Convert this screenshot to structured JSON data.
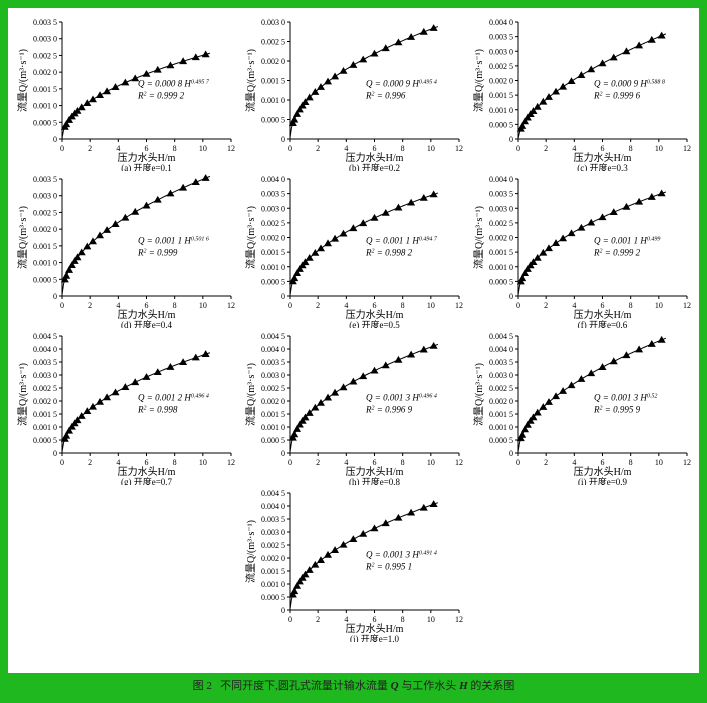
{
  "figure": {
    "number": "图 2",
    "title_prefix": "不同开度下,圆孔式流量计输水流量 ",
    "var_q": "Q",
    "title_mid": " 与工作水头 ",
    "var_h": "H",
    "title_suffix": " 的关系图"
  },
  "axes": {
    "xlabel": "压力水头H/m",
    "ylabel": "流量Q/(m³·s⁻¹)",
    "xlim": [
      0,
      12
    ],
    "xticks": [
      0,
      2,
      4,
      6,
      8,
      10,
      12
    ],
    "marker": "triangle",
    "marker_size": 4,
    "marker_color": "#000000",
    "line_color": "#000000",
    "line_width": 1,
    "background_color": "#ffffff",
    "axis_color": "#000000",
    "font_size_tick": 8,
    "font_size_label": 10
  },
  "panels": [
    {
      "id": "a",
      "sub": "(a) 开度e=0.1",
      "coef": 0.0008,
      "exp": 0.4957,
      "exp_str": "0.495 7",
      "r2": "0.999 2",
      "ylim": [
        0,
        0.0035
      ],
      "yticks": [
        0,
        0.0005,
        0.001,
        0.0015,
        0.002,
        0.0025,
        0.003,
        0.0035
      ],
      "ytick_labels": [
        "0",
        "0.000 5",
        "0.001 0",
        "0.001 5",
        "0.002 0",
        "0.002 5",
        "0.003 0",
        "0.003 5"
      ],
      "eq": "Q = 0.000 8 H",
      "data_x": [
        0.2,
        0.3,
        0.5,
        0.7,
        0.9,
        1.1,
        1.4,
        1.8,
        2.2,
        2.7,
        3.2,
        3.8,
        4.5,
        5.2,
        6.0,
        6.8,
        7.7,
        8.6,
        9.5,
        10.2
      ]
    },
    {
      "id": "b",
      "sub": "(b) 开度e=0.2",
      "coef": 0.0009,
      "exp": 0.4954,
      "exp_str": "0.495 4",
      "r2": "0.996",
      "ylim": [
        0,
        0.003
      ],
      "yticks": [
        0,
        0.0005,
        0.001,
        0.0015,
        0.002,
        0.0025,
        0.003
      ],
      "ytick_labels": [
        "0",
        "0.000 5",
        "0.001 0",
        "0.001 5",
        "0.002 0",
        "0.002 5",
        "0.003 0"
      ],
      "eq": "Q = 0.000 9 H",
      "data_x": [
        0.2,
        0.3,
        0.5,
        0.7,
        0.9,
        1.1,
        1.4,
        1.8,
        2.2,
        2.7,
        3.2,
        3.8,
        4.5,
        5.2,
        6.0,
        6.8,
        7.7,
        8.6,
        9.5,
        10.2
      ]
    },
    {
      "id": "c",
      "sub": "(c) 开度e=0.3",
      "coef": 0.0009,
      "exp": 0.5888,
      "exp_str": "0.588 8",
      "r2": "0.999 6",
      "ylim": [
        0,
        0.004
      ],
      "yticks": [
        0,
        0.0005,
        0.001,
        0.0015,
        0.002,
        0.0025,
        0.003,
        0.0035,
        0.004
      ],
      "ytick_labels": [
        "0",
        "0.000 5",
        "0.001 0",
        "0.001 5",
        "0.002 0",
        "0.002 5",
        "0.003 0",
        "0.003 5",
        "0.004 0"
      ],
      "eq": "Q = 0.000 9 H",
      "data_x": [
        0.2,
        0.3,
        0.5,
        0.7,
        0.9,
        1.1,
        1.4,
        1.8,
        2.2,
        2.7,
        3.2,
        3.8,
        4.5,
        5.2,
        6.0,
        6.8,
        7.7,
        8.6,
        9.5,
        10.2
      ]
    },
    {
      "id": "d",
      "sub": "(d) 开度e=0.4",
      "coef": 0.0011,
      "exp": 0.5016,
      "exp_str": "0.501 6",
      "r2": "0.999",
      "ylim": [
        0,
        0.0035
      ],
      "yticks": [
        0,
        0.0005,
        0.001,
        0.0015,
        0.002,
        0.0025,
        0.003,
        0.0035
      ],
      "ytick_labels": [
        "0",
        "0.000 5",
        "0.001 0",
        "0.001 5",
        "0.002 0",
        "0.002 5",
        "0.003 0",
        "0.003 5"
      ],
      "eq": "Q = 0.001 1 H",
      "data_x": [
        0.2,
        0.3,
        0.5,
        0.7,
        0.9,
        1.1,
        1.4,
        1.8,
        2.2,
        2.7,
        3.2,
        3.8,
        4.5,
        5.2,
        6.0,
        6.8,
        7.7,
        8.6,
        9.5,
        10.2
      ]
    },
    {
      "id": "e",
      "sub": "(e) 开度e=0.5",
      "coef": 0.0011,
      "exp": 0.4947,
      "exp_str": "0.494 7",
      "r2": "0.998 2",
      "ylim": [
        0,
        0.004
      ],
      "yticks": [
        0,
        0.0005,
        0.001,
        0.0015,
        0.002,
        0.0025,
        0.003,
        0.0035,
        0.004
      ],
      "ytick_labels": [
        "0",
        "0.000 5",
        "0.001 0",
        "0.001 5",
        "0.002 0",
        "0.002 5",
        "0.003 0",
        "0.003 5",
        "0.004 0"
      ],
      "eq": "Q = 0.001 1 H",
      "data_x": [
        0.2,
        0.3,
        0.5,
        0.7,
        0.9,
        1.1,
        1.4,
        1.8,
        2.2,
        2.7,
        3.2,
        3.8,
        4.5,
        5.2,
        6.0,
        6.8,
        7.7,
        8.6,
        9.5,
        10.2
      ]
    },
    {
      "id": "f",
      "sub": "(f) 开度e=0.6",
      "coef": 0.0011,
      "exp": 0.499,
      "exp_str": "0.499",
      "r2": "0.999 2",
      "ylim": [
        0,
        0.004
      ],
      "yticks": [
        0,
        0.0005,
        0.001,
        0.0015,
        0.002,
        0.0025,
        0.003,
        0.0035,
        0.004
      ],
      "ytick_labels": [
        "0",
        "0.000 5",
        "0.001 0",
        "0.001 5",
        "0.002 0",
        "0.002 5",
        "0.003 0",
        "0.003 5",
        "0.004 0"
      ],
      "eq": "Q = 0.001 1 H",
      "data_x": [
        0.2,
        0.3,
        0.5,
        0.7,
        0.9,
        1.1,
        1.4,
        1.8,
        2.2,
        2.7,
        3.2,
        3.8,
        4.5,
        5.2,
        6.0,
        6.8,
        7.7,
        8.6,
        9.5,
        10.2
      ]
    },
    {
      "id": "g",
      "sub": "(g) 开度e=0.7",
      "coef": 0.0012,
      "exp": 0.4964,
      "exp_str": "0.496 4",
      "r2": "0.998",
      "ylim": [
        0,
        0.0045
      ],
      "yticks": [
        0,
        0.0005,
        0.001,
        0.0015,
        0.002,
        0.0025,
        0.003,
        0.0035,
        0.004,
        0.0045
      ],
      "ytick_labels": [
        "0",
        "0.000 5",
        "0.001 0",
        "0.001 5",
        "0.002 0",
        "0.002 5",
        "0.003 0",
        "0.003 5",
        "0.004 0",
        "0.004 5"
      ],
      "eq": "Q = 0.001 2 H",
      "data_x": [
        0.2,
        0.3,
        0.5,
        0.7,
        0.9,
        1.1,
        1.4,
        1.8,
        2.2,
        2.7,
        3.2,
        3.8,
        4.5,
        5.2,
        6.0,
        6.8,
        7.7,
        8.6,
        9.5,
        10.2
      ]
    },
    {
      "id": "h",
      "sub": "(h) 开度e=0.8",
      "coef": 0.0013,
      "exp": 0.4964,
      "exp_str": "0.496 4",
      "r2": "0.996 9",
      "ylim": [
        0,
        0.0045
      ],
      "yticks": [
        0,
        0.0005,
        0.001,
        0.0015,
        0.002,
        0.0025,
        0.003,
        0.0035,
        0.004,
        0.0045
      ],
      "ytick_labels": [
        "0",
        "0.000 5",
        "0.001 0",
        "0.001 5",
        "0.002 0",
        "0.002 5",
        "0.003 0",
        "0.003 5",
        "0.004 0",
        "0.004 5"
      ],
      "eq": "Q = 0.001 3 H",
      "data_x": [
        0.2,
        0.3,
        0.5,
        0.7,
        0.9,
        1.1,
        1.4,
        1.8,
        2.2,
        2.7,
        3.2,
        3.8,
        4.5,
        5.2,
        6.0,
        6.8,
        7.7,
        8.6,
        9.5,
        10.2
      ]
    },
    {
      "id": "i",
      "sub": "(i) 开度e=0.9",
      "coef": 0.0013,
      "exp": 0.52,
      "exp_str": "0.52",
      "r2": "0.995 9",
      "ylim": [
        0,
        0.0045
      ],
      "yticks": [
        0,
        0.0005,
        0.001,
        0.0015,
        0.002,
        0.0025,
        0.003,
        0.0035,
        0.004,
        0.0045
      ],
      "ytick_labels": [
        "0",
        "0.000 5",
        "0.001 0",
        "0.001 5",
        "0.002 0",
        "0.002 5",
        "0.003 0",
        "0.003 5",
        "0.004 0",
        "0.004 5"
      ],
      "eq": "Q = 0.001 3 H",
      "data_x": [
        0.2,
        0.3,
        0.5,
        0.7,
        0.9,
        1.1,
        1.4,
        1.8,
        2.2,
        2.7,
        3.2,
        3.8,
        4.5,
        5.2,
        6.0,
        6.8,
        7.7,
        8.6,
        9.5,
        10.2
      ]
    },
    {
      "id": "j",
      "sub": "(j) 开度e=1.0",
      "coef": 0.0013,
      "exp": 0.4914,
      "exp_str": "0.491 4",
      "r2": "0.995 1",
      "ylim": [
        0,
        0.0045
      ],
      "yticks": [
        0,
        0.0005,
        0.001,
        0.0015,
        0.002,
        0.0025,
        0.003,
        0.0035,
        0.004,
        0.0045
      ],
      "ytick_labels": [
        "0",
        "0.000 5",
        "0.001 0",
        "0.001 5",
        "0.002 0",
        "0.002 5",
        "0.003 0",
        "0.003 5",
        "0.004 0",
        "0.004 5"
      ],
      "eq": "Q = 0.001 3 H",
      "data_x": [
        0.2,
        0.3,
        0.5,
        0.7,
        0.9,
        1.1,
        1.4,
        1.8,
        2.2,
        2.7,
        3.2,
        3.8,
        4.5,
        5.2,
        6.0,
        6.8,
        7.7,
        8.6,
        9.5,
        10.2
      ]
    }
  ]
}
